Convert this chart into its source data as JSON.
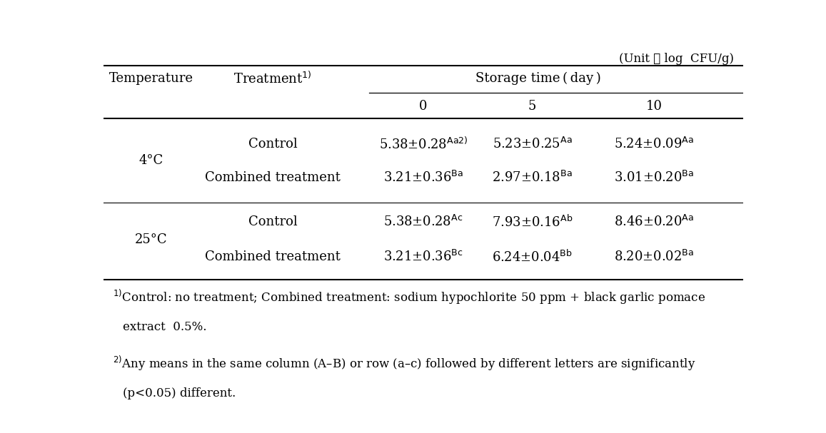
{
  "unit_label": "(Unit ： log  CFU/g)",
  "storage_time_label": "Storage time（day）",
  "col_temp": "Temperature",
  "col_treat": "Treatment",
  "col_treat_sup": "1)",
  "storage_days": [
    "0",
    "5",
    "10"
  ],
  "rows": [
    {
      "temp_label": "4°C",
      "temp_show": true,
      "treatment": "Control",
      "day0": "5.38±0.28",
      "day0_sup": "Aa2)",
      "day5": "5.23±0.25",
      "day5_sup": "Aa",
      "day10": "5.24±0.09",
      "day10_sup": "Aa"
    },
    {
      "temp_label": "4°C",
      "temp_show": false,
      "treatment": "Combined treatment",
      "day0": "3.21±0.36",
      "day0_sup": "Ba",
      "day5": "2.97±0.18",
      "day5_sup": "Ba",
      "day10": "3.01±0.20",
      "day10_sup": "Ba"
    },
    {
      "temp_label": "25°C",
      "temp_show": true,
      "treatment": "Control",
      "day0": "5.38±0.28",
      "day0_sup": "Ac",
      "day5": "7.93±0.16",
      "day5_sup": "Ab",
      "day10": "8.46±0.20",
      "day10_sup": "Aa"
    },
    {
      "temp_label": "25°C",
      "temp_show": false,
      "treatment": "Combined treatment",
      "day0": "3.21±0.36",
      "day0_sup": "Bc",
      "day5": "6.24±0.04",
      "day5_sup": "Bb",
      "day10": "8.20±0.02",
      "day10_sup": "Ba"
    }
  ],
  "fn1_main": "Control: no treatment; Combined treatment: sodium hypochlorite 50 ppm + black garlic pomace",
  "fn1_cont": "extract  0.5%.",
  "fn1_sup": "1)",
  "fn2_main": "Any means in the same column (A–B) or row (a–c) followed by different letters are significantly",
  "fn2_cont": "(p<0.05) different.",
  "fn2_sup": "2)",
  "font_size": 13,
  "sup_font_size": 9,
  "footnote_font_size": 12
}
